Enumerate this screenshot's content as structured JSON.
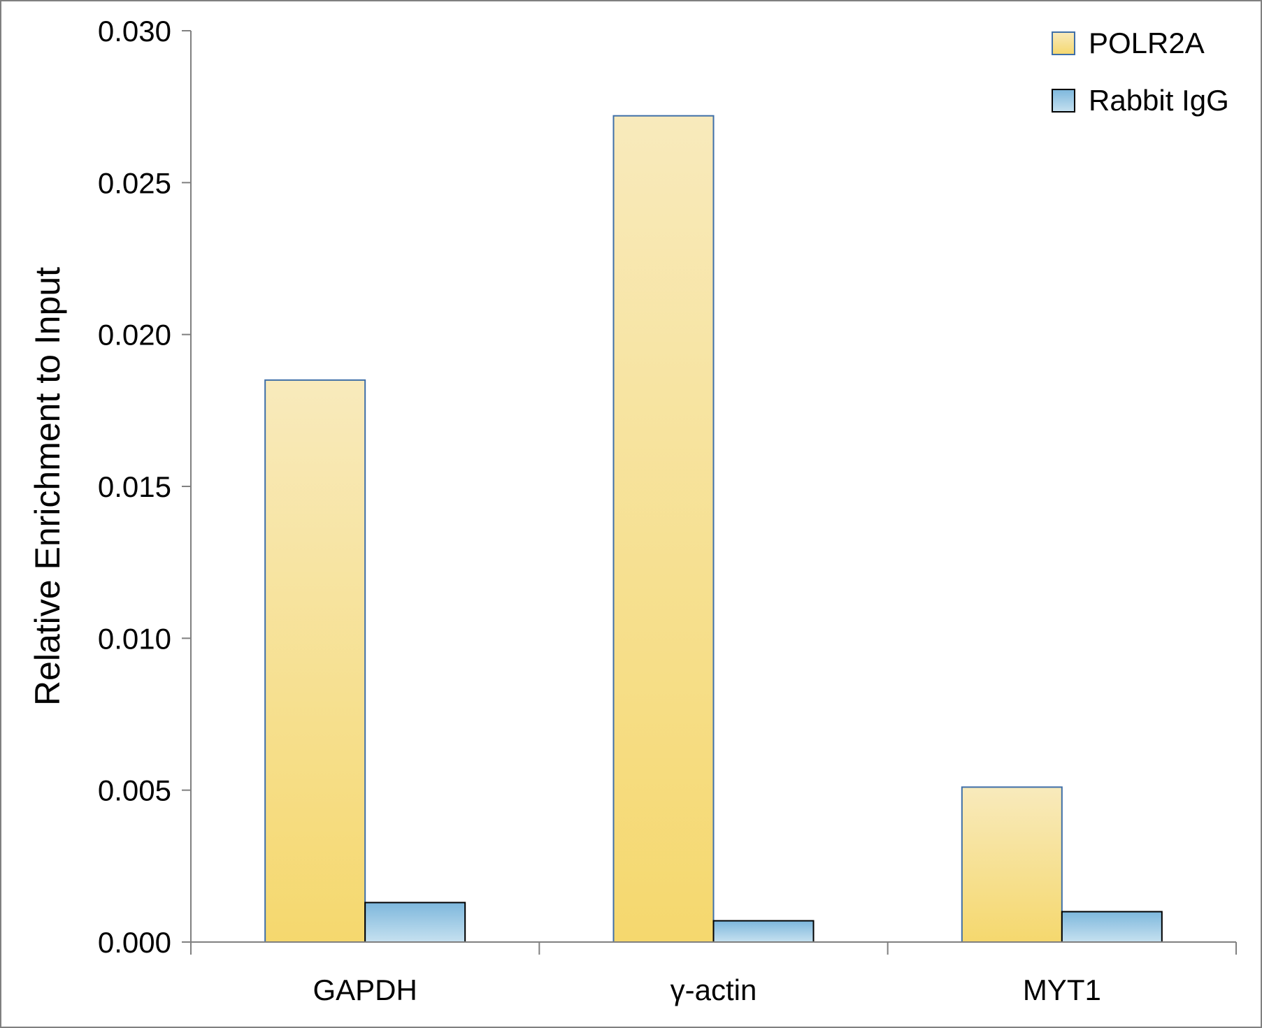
{
  "chart_data": {
    "type": "bar",
    "title": "",
    "xlabel": "",
    "ylabel": "Relative Enrichment to Input",
    "categories": [
      "GAPDH",
      "γ-actin",
      "MYT1"
    ],
    "series": [
      {
        "name": "POLR2A",
        "values": [
          0.0185,
          0.0272,
          0.0051
        ],
        "color_top": "#f8eabc",
        "color_bottom": "#f5d86e",
        "stroke": "#3f6fa8"
      },
      {
        "name": "Rabbit IgG",
        "values": [
          0.0013,
          0.0007,
          0.001
        ],
        "color_top": "#7db7dc",
        "color_bottom": "#c6e1f0",
        "stroke": "#000000"
      }
    ],
    "ylim": [
      0,
      0.03
    ],
    "yticks": [
      "0.000",
      "0.005",
      "0.010",
      "0.015",
      "0.020",
      "0.025",
      "0.030"
    ],
    "grid": false,
    "legend_position": "top-right"
  }
}
